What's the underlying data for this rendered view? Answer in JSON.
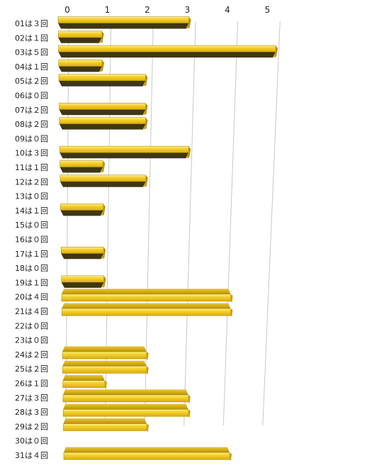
{
  "chart_data": {
    "type": "bar",
    "orientation": "horizontal",
    "categories": [
      "01は３回",
      "02は１回",
      "03は５回",
      "04は１回",
      "05は２回",
      "06は０回",
      "07は２回",
      "08は２回",
      "09は０回",
      "10は３回",
      "11は１回",
      "12は２回",
      "13は０回",
      "14は１回",
      "15は０回",
      "16は０回",
      "17は１回",
      "18は０回",
      "19は１回",
      "20は４回",
      "21は４回",
      "22は０回",
      "23は０回",
      "24は２回",
      "25は２回",
      "26は１回",
      "27は３回",
      "28は３回",
      "29は２回",
      "30は０回",
      "31は４回"
    ],
    "values": [
      3,
      1,
      5,
      1,
      2,
      0,
      2,
      2,
      0,
      3,
      1,
      2,
      0,
      1,
      0,
      0,
      1,
      0,
      1,
      4,
      4,
      0,
      0,
      2,
      2,
      1,
      3,
      3,
      2,
      0,
      4
    ],
    "x_ticks": [
      "0",
      "1",
      "2",
      "3",
      "4",
      "5"
    ],
    "xlim": [
      0,
      5
    ],
    "grid": true,
    "legend": "none",
    "colors": {
      "bar_face": "#f7d22a",
      "bar_highlight": "#fff06a",
      "bar_shadow": "#3f3614",
      "bar_edge": "#b08e0c",
      "grid": "#c8c8c8"
    }
  }
}
